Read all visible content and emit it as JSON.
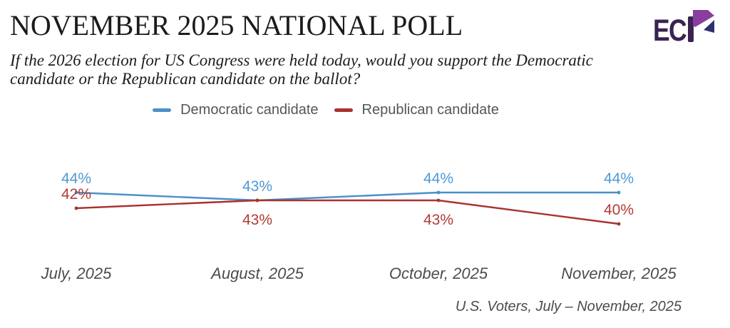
{
  "header": {
    "title": "NOVEMBER 2025 NATIONAL POLL",
    "subtitle_lines": [
      "If the 2026 election for US Congress were held today, would you support the Democratic",
      "candidate or the Republican candidate on the ballot?"
    ],
    "logo_letters": "EC",
    "logo_stylized_letter": "P"
  },
  "legend": [
    {
      "label": "Democratic candidate",
      "color": "#4a90c9"
    },
    {
      "label": "Republican candidate",
      "color": "#a93230"
    }
  ],
  "chart_data": {
    "type": "line",
    "x": [
      "July, 2025",
      "August, 2025",
      "October, 2025",
      "November, 2025"
    ],
    "series": [
      {
        "name": "Democratic candidate",
        "slug": "democratic",
        "color": "#4a90c9",
        "label_color": "#4f99d4",
        "values": [
          44,
          43,
          44,
          44
        ],
        "label_positions": [
          "above",
          "above",
          "above",
          "above"
        ]
      },
      {
        "name": "Republican candidate",
        "slug": "republican",
        "color": "#a93230",
        "label_color": "#b23b38",
        "values": [
          42,
          43,
          43,
          40
        ],
        "label_positions": [
          "above",
          "below",
          "below",
          "above"
        ]
      }
    ],
    "value_suffix": "%",
    "ylim": [
      38,
      46
    ],
    "grid": false,
    "legend_position": "top"
  },
  "footer": {
    "source": "U.S. Voters, July – November, 2025"
  },
  "colors": {
    "logo_dark_purple": "#3a2352",
    "logo_bright_purple": "#8a3d9e",
    "logo_navy": "#2e3070"
  }
}
